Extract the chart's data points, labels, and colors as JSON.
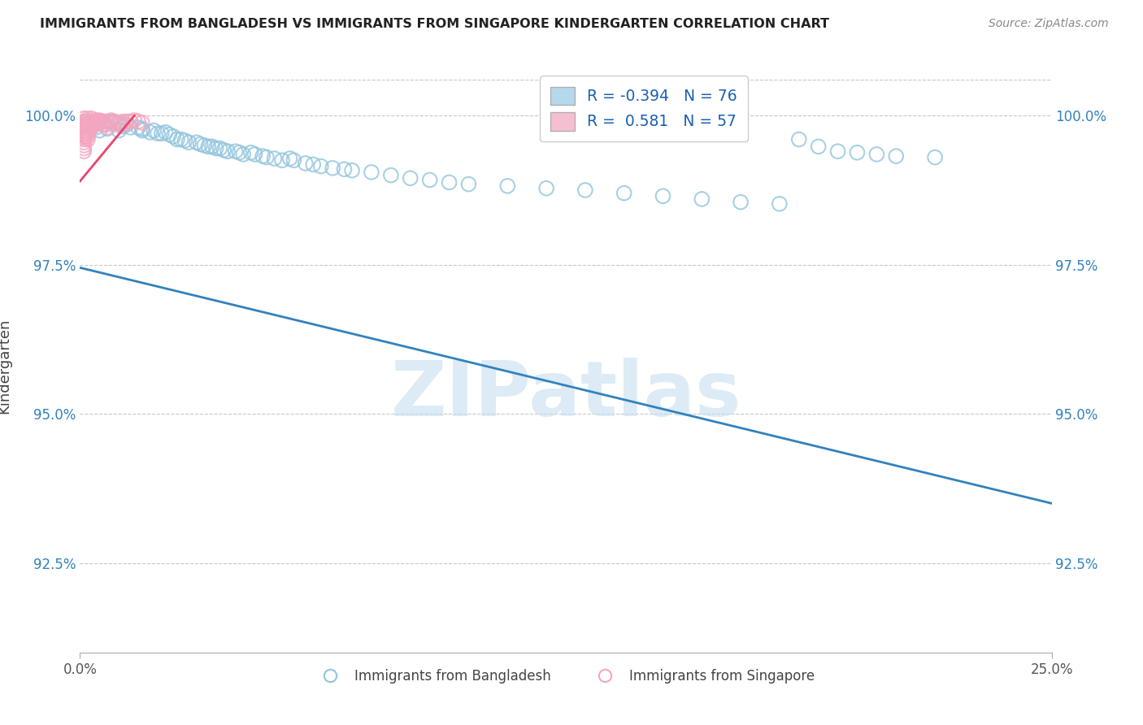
{
  "title": "IMMIGRANTS FROM BANGLADESH VS IMMIGRANTS FROM SINGAPORE KINDERGARTEN CORRELATION CHART",
  "source": "Source: ZipAtlas.com",
  "ylabel": "Kindergarten",
  "x_min": 0.0,
  "x_max": 0.25,
  "y_min": 0.91,
  "y_max": 1.006,
  "ytick_vals": [
    0.925,
    0.95,
    0.975,
    1.0
  ],
  "ytick_labels": [
    "92.5%",
    "95.0%",
    "97.5%",
    "100.0%"
  ],
  "xtick_vals": [
    0.0,
    0.25
  ],
  "xtick_labels": [
    "0.0%",
    "25.0%"
  ],
  "grid_color": "#c8c8c8",
  "blue_edge_color": "#92c5de",
  "pink_edge_color": "#f4a6c0",
  "blue_line_color": "#3182bd",
  "pink_line_color": "#e8456a",
  "r_bangladesh": -0.394,
  "n_bangladesh": 76,
  "r_singapore": 0.581,
  "n_singapore": 57,
  "watermark": "ZIPatlas",
  "blue_line_x0": 0.0,
  "blue_line_y0": 0.9745,
  "blue_line_x1": 0.25,
  "blue_line_y1": 0.935,
  "pink_line_x0": 0.0,
  "pink_line_y0": 0.989,
  "pink_line_x1": 0.014,
  "pink_line_y1": 1.0,
  "bangladesh_pts": [
    [
      0.003,
      0.998
    ],
    [
      0.003,
      0.999
    ],
    [
      0.004,
      0.998
    ],
    [
      0.005,
      0.999
    ],
    [
      0.005,
      0.9975
    ],
    [
      0.006,
      0.999
    ],
    [
      0.006,
      0.9985
    ],
    [
      0.007,
      0.9978
    ],
    [
      0.008,
      0.999
    ],
    [
      0.009,
      0.9988
    ],
    [
      0.01,
      0.9988
    ],
    [
      0.01,
      0.9975
    ],
    [
      0.011,
      0.9982
    ],
    [
      0.012,
      0.9985
    ],
    [
      0.013,
      0.998
    ],
    [
      0.015,
      0.998
    ],
    [
      0.016,
      0.9978
    ],
    [
      0.016,
      0.9975
    ],
    [
      0.018,
      0.9972
    ],
    [
      0.019,
      0.9975
    ],
    [
      0.02,
      0.997
    ],
    [
      0.021,
      0.997
    ],
    [
      0.022,
      0.9972
    ],
    [
      0.023,
      0.9968
    ],
    [
      0.024,
      0.9965
    ],
    [
      0.025,
      0.996
    ],
    [
      0.026,
      0.996
    ],
    [
      0.027,
      0.9958
    ],
    [
      0.028,
      0.9955
    ],
    [
      0.03,
      0.9955
    ],
    [
      0.031,
      0.9952
    ],
    [
      0.032,
      0.995
    ],
    [
      0.033,
      0.9948
    ],
    [
      0.034,
      0.9948
    ],
    [
      0.035,
      0.9945
    ],
    [
      0.036,
      0.9945
    ],
    [
      0.037,
      0.9942
    ],
    [
      0.038,
      0.994
    ],
    [
      0.04,
      0.994
    ],
    [
      0.041,
      0.9938
    ],
    [
      0.042,
      0.9935
    ],
    [
      0.044,
      0.9938
    ],
    [
      0.045,
      0.9935
    ],
    [
      0.047,
      0.9932
    ],
    [
      0.048,
      0.993
    ],
    [
      0.05,
      0.9928
    ],
    [
      0.052,
      0.9925
    ],
    [
      0.054,
      0.9928
    ],
    [
      0.055,
      0.9925
    ],
    [
      0.058,
      0.992
    ],
    [
      0.06,
      0.9918
    ],
    [
      0.062,
      0.9915
    ],
    [
      0.065,
      0.9912
    ],
    [
      0.068,
      0.991
    ],
    [
      0.07,
      0.9908
    ],
    [
      0.075,
      0.9905
    ],
    [
      0.08,
      0.99
    ],
    [
      0.085,
      0.9895
    ],
    [
      0.09,
      0.9892
    ],
    [
      0.095,
      0.9888
    ],
    [
      0.1,
      0.9885
    ],
    [
      0.11,
      0.9882
    ],
    [
      0.12,
      0.9878
    ],
    [
      0.13,
      0.9875
    ],
    [
      0.14,
      0.987
    ],
    [
      0.15,
      0.9865
    ],
    [
      0.16,
      0.986
    ],
    [
      0.17,
      0.9855
    ],
    [
      0.18,
      0.9852
    ],
    [
      0.185,
      0.996
    ],
    [
      0.19,
      0.9948
    ],
    [
      0.195,
      0.994
    ],
    [
      0.2,
      0.9938
    ],
    [
      0.205,
      0.9935
    ],
    [
      0.21,
      0.9932
    ],
    [
      0.22,
      0.993
    ]
  ],
  "singapore_pts": [
    [
      0.001,
      0.999
    ],
    [
      0.001,
      0.9995
    ],
    [
      0.001,
      0.9985
    ],
    [
      0.001,
      0.998
    ],
    [
      0.001,
      0.9975
    ],
    [
      0.001,
      0.997
    ],
    [
      0.001,
      0.9965
    ],
    [
      0.001,
      0.996
    ],
    [
      0.001,
      0.9955
    ],
    [
      0.001,
      0.995
    ],
    [
      0.001,
      0.9945
    ],
    [
      0.001,
      0.994
    ],
    [
      0.0015,
      0.999
    ],
    [
      0.0015,
      0.9985
    ],
    [
      0.0015,
      0.998
    ],
    [
      0.0015,
      0.9975
    ],
    [
      0.0015,
      0.997
    ],
    [
      0.0015,
      0.9965
    ],
    [
      0.002,
      0.9995
    ],
    [
      0.002,
      0.999
    ],
    [
      0.002,
      0.9985
    ],
    [
      0.002,
      0.998
    ],
    [
      0.002,
      0.9975
    ],
    [
      0.002,
      0.997
    ],
    [
      0.002,
      0.9965
    ],
    [
      0.002,
      0.996
    ],
    [
      0.0025,
      0.999
    ],
    [
      0.0025,
      0.9985
    ],
    [
      0.0025,
      0.998
    ],
    [
      0.003,
      0.9995
    ],
    [
      0.003,
      0.999
    ],
    [
      0.003,
      0.9985
    ],
    [
      0.003,
      0.998
    ],
    [
      0.0035,
      0.999
    ],
    [
      0.0035,
      0.9985
    ],
    [
      0.004,
      0.9992
    ],
    [
      0.004,
      0.9988
    ],
    [
      0.0045,
      0.999
    ],
    [
      0.005,
      0.9992
    ],
    [
      0.005,
      0.9988
    ],
    [
      0.006,
      0.999
    ],
    [
      0.006,
      0.9985
    ],
    [
      0.007,
      0.999
    ],
    [
      0.007,
      0.9985
    ],
    [
      0.007,
      0.998
    ],
    [
      0.008,
      0.9992
    ],
    [
      0.008,
      0.9988
    ],
    [
      0.009,
      0.999
    ],
    [
      0.01,
      0.9988
    ],
    [
      0.01,
      0.9984
    ],
    [
      0.011,
      0.999
    ],
    [
      0.011,
      0.9985
    ],
    [
      0.012,
      0.999
    ],
    [
      0.013,
      0.999
    ],
    [
      0.014,
      0.9992
    ],
    [
      0.015,
      0.999
    ],
    [
      0.016,
      0.9988
    ]
  ]
}
